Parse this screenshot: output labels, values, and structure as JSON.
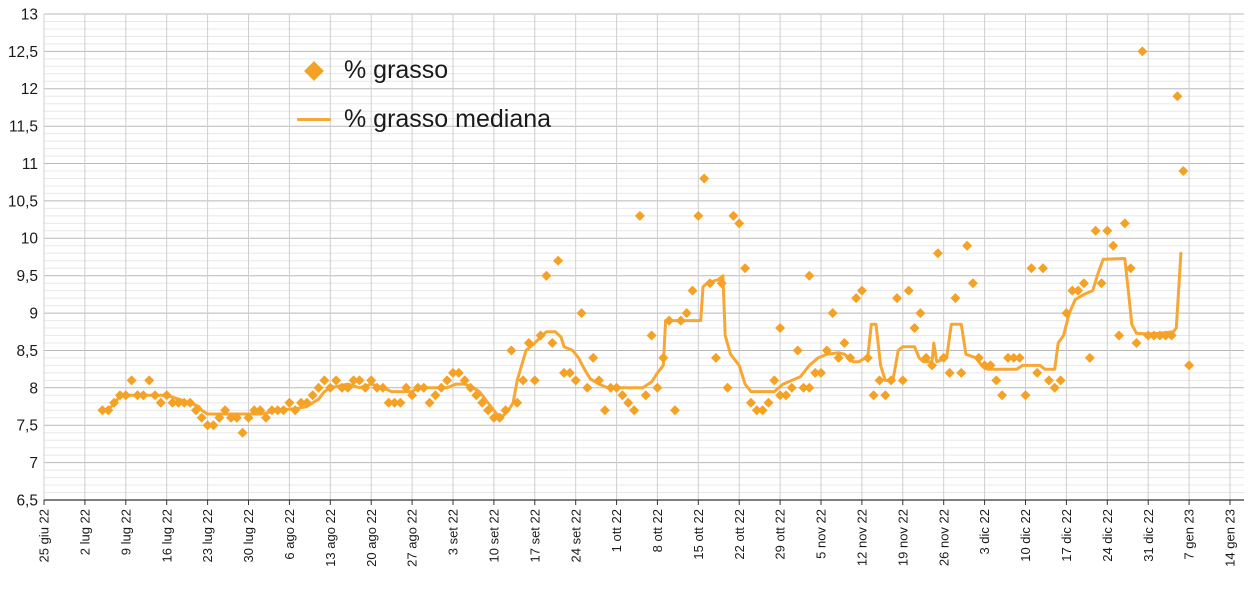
{
  "chart": {
    "legend": {
      "series1_label": "% grasso",
      "series2_label": "% grasso mediana"
    },
    "colors": {
      "accent": "#F5A125",
      "line": "#F7A733",
      "grid_major": "#b9b9b9",
      "grid_minor": "#e8e8e8",
      "grid_vertical": "#cfcfcf",
      "axis": "#333333",
      "text": "#1a1a1a"
    }
  },
  "chart_data": {
    "type": "scatter",
    "title": "",
    "xlabel": "",
    "ylabel": "",
    "grid": "major+minor",
    "legend_position": "inside-top-left",
    "x_axis": {
      "unit": "days since 25 giu 22",
      "range_days": [
        0,
        203
      ],
      "tick_interval_days": 7,
      "tick_labels": [
        "25 giu 22",
        "2 lug 22",
        "9 lug 22",
        "16 lug 22",
        "23 lug 22",
        "30 lug 22",
        "6 ago 22",
        "13 ago 22",
        "20 ago 22",
        "27 ago 22",
        "3 set 22",
        "10 set 22",
        "17 set 22",
        "24 set 22",
        "1 ott 22",
        "8 ott 22",
        "15 ott 22",
        "22 ott 22",
        "29 ott 22",
        "5 nov 22",
        "12 nov 22",
        "19 nov 22",
        "26 nov 22",
        "3 dic 22",
        "10 dic 22",
        "17 dic 22",
        "24 dic 22",
        "31 dic 22",
        "7 gen 23",
        "14 gen 23"
      ]
    },
    "y_axis": {
      "min": 6.5,
      "max": 13,
      "major_step": 0.5,
      "minor_step": 0.1,
      "tick_labels": [
        "6,5",
        "7",
        "7,5",
        "8",
        "8,5",
        "9",
        "9,5",
        "10",
        "10,5",
        "11",
        "11,5",
        "12",
        "12,5",
        "13"
      ]
    },
    "series": [
      {
        "name": "% grasso",
        "style": "diamond-scatter",
        "points": [
          [
            10,
            7.7
          ],
          [
            11,
            7.7
          ],
          [
            12,
            7.8
          ],
          [
            13,
            7.9
          ],
          [
            14,
            7.9
          ],
          [
            15,
            8.1
          ],
          [
            16,
            7.9
          ],
          [
            17,
            7.9
          ],
          [
            18,
            8.1
          ],
          [
            19,
            7.9
          ],
          [
            20,
            7.8
          ],
          [
            21,
            7.9
          ],
          [
            22,
            7.8
          ],
          [
            23,
            7.8
          ],
          [
            24,
            7.8
          ],
          [
            25,
            7.8
          ],
          [
            26,
            7.7
          ],
          [
            27,
            7.6
          ],
          [
            28,
            7.5
          ],
          [
            29,
            7.5
          ],
          [
            30,
            7.6
          ],
          [
            31,
            7.7
          ],
          [
            32,
            7.6
          ],
          [
            33,
            7.6
          ],
          [
            34,
            7.4
          ],
          [
            35,
            7.6
          ],
          [
            36,
            7.7
          ],
          [
            37,
            7.7
          ],
          [
            38,
            7.6
          ],
          [
            39,
            7.7
          ],
          [
            40,
            7.7
          ],
          [
            41,
            7.7
          ],
          [
            42,
            7.8
          ],
          [
            43,
            7.7
          ],
          [
            44,
            7.8
          ],
          [
            45,
            7.8
          ],
          [
            46,
            7.9
          ],
          [
            47,
            8.0
          ],
          [
            48,
            8.1
          ],
          [
            49,
            8.0
          ],
          [
            50,
            8.1
          ],
          [
            51,
            8.0
          ],
          [
            52,
            8.0
          ],
          [
            53,
            8.1
          ],
          [
            54,
            8.1
          ],
          [
            55,
            8.0
          ],
          [
            56,
            8.1
          ],
          [
            57,
            8.0
          ],
          [
            58,
            8.0
          ],
          [
            59,
            7.8
          ],
          [
            60,
            7.8
          ],
          [
            61,
            7.8
          ],
          [
            62,
            8.0
          ],
          [
            63,
            7.9
          ],
          [
            64,
            8.0
          ],
          [
            65,
            8.0
          ],
          [
            66,
            7.8
          ],
          [
            67,
            7.9
          ],
          [
            68,
            8.0
          ],
          [
            69,
            8.1
          ],
          [
            70,
            8.2
          ],
          [
            71,
            8.2
          ],
          [
            72,
            8.1
          ],
          [
            73,
            8.0
          ],
          [
            74,
            7.9
          ],
          [
            75,
            7.8
          ],
          [
            76,
            7.7
          ],
          [
            77,
            7.6
          ],
          [
            78,
            7.6
          ],
          [
            79,
            7.7
          ],
          [
            80,
            8.5
          ],
          [
            81,
            7.8
          ],
          [
            82,
            8.1
          ],
          [
            83,
            8.6
          ],
          [
            84,
            8.1
          ],
          [
            85,
            8.7
          ],
          [
            86,
            9.5
          ],
          [
            87,
            8.6
          ],
          [
            88,
            9.7
          ],
          [
            89,
            8.2
          ],
          [
            90,
            8.2
          ],
          [
            91,
            8.1
          ],
          [
            92,
            9.0
          ],
          [
            93,
            8.0
          ],
          [
            94,
            8.4
          ],
          [
            95,
            8.1
          ],
          [
            96,
            7.7
          ],
          [
            97,
            8.0
          ],
          [
            98,
            8.0
          ],
          [
            99,
            7.9
          ],
          [
            100,
            7.8
          ],
          [
            101,
            7.7
          ],
          [
            102,
            10.3
          ],
          [
            103,
            7.9
          ],
          [
            104,
            8.7
          ],
          [
            105,
            8.0
          ],
          [
            106,
            8.4
          ],
          [
            107,
            8.9
          ],
          [
            108,
            7.7
          ],
          [
            109,
            8.9
          ],
          [
            110,
            9.0
          ],
          [
            111,
            9.3
          ],
          [
            112,
            10.3
          ],
          [
            113,
            10.8
          ],
          [
            114,
            9.4
          ],
          [
            115,
            8.4
          ],
          [
            116,
            9.4
          ],
          [
            117,
            8.0
          ],
          [
            118,
            10.3
          ],
          [
            119,
            10.2
          ],
          [
            120,
            9.6
          ],
          [
            121,
            7.8
          ],
          [
            122,
            7.7
          ],
          [
            123,
            7.7
          ],
          [
            124,
            7.8
          ],
          [
            125,
            8.1
          ],
          [
            126,
            8.8
          ],
          [
            126,
            7.9
          ],
          [
            127,
            7.9
          ],
          [
            128,
            8.0
          ],
          [
            129,
            8.5
          ],
          [
            130,
            8.0
          ],
          [
            131,
            9.5
          ],
          [
            131,
            8.0
          ],
          [
            132,
            8.2
          ],
          [
            133,
            8.2
          ],
          [
            134,
            8.5
          ],
          [
            135,
            9.0
          ],
          [
            136,
            8.4
          ],
          [
            137,
            8.6
          ],
          [
            138,
            8.4
          ],
          [
            139,
            9.2
          ],
          [
            140,
            9.3
          ],
          [
            141,
            8.4
          ],
          [
            142,
            7.9
          ],
          [
            143,
            8.1
          ],
          [
            144,
            7.9
          ],
          [
            145,
            8.1
          ],
          [
            146,
            9.2
          ],
          [
            147,
            8.1
          ],
          [
            148,
            9.3
          ],
          [
            149,
            8.8
          ],
          [
            150,
            9.0
          ],
          [
            151,
            8.4
          ],
          [
            152,
            8.3
          ],
          [
            153,
            9.8
          ],
          [
            154,
            8.4
          ],
          [
            155,
            8.2
          ],
          [
            156,
            9.2
          ],
          [
            157,
            8.2
          ],
          [
            158,
            9.9
          ],
          [
            159,
            9.4
          ],
          [
            160,
            8.4
          ],
          [
            161,
            8.3
          ],
          [
            162,
            8.3
          ],
          [
            163,
            8.1
          ],
          [
            164,
            7.9
          ],
          [
            165,
            8.4
          ],
          [
            166,
            8.4
          ],
          [
            167,
            8.4
          ],
          [
            168,
            7.9
          ],
          [
            169,
            9.6
          ],
          [
            170,
            8.2
          ],
          [
            171,
            9.6
          ],
          [
            172,
            8.1
          ],
          [
            173,
            8.0
          ],
          [
            174,
            8.1
          ],
          [
            175,
            9.0
          ],
          [
            176,
            9.3
          ],
          [
            177,
            9.3
          ],
          [
            178,
            9.4
          ],
          [
            179,
            8.4
          ],
          [
            180,
            10.1
          ],
          [
            181,
            9.4
          ],
          [
            182,
            10.1
          ],
          [
            183,
            9.9
          ],
          [
            184,
            8.7
          ],
          [
            185,
            10.2
          ],
          [
            186,
            9.6
          ],
          [
            187,
            8.6
          ],
          [
            188,
            12.5
          ],
          [
            189,
            8.7
          ],
          [
            190,
            8.7
          ],
          [
            191,
            8.7
          ],
          [
            192,
            8.7
          ],
          [
            193,
            8.7
          ],
          [
            194,
            11.9
          ],
          [
            195,
            10.9
          ],
          [
            196,
            8.3
          ]
        ]
      },
      {
        "name": "% grasso mediana",
        "style": "line",
        "points": [
          [
            10,
            7.7
          ],
          [
            11,
            7.72
          ],
          [
            12,
            7.78
          ],
          [
            13,
            7.9
          ],
          [
            21,
            7.9
          ],
          [
            23,
            7.85
          ],
          [
            25,
            7.8
          ],
          [
            26.5,
            7.75
          ],
          [
            27,
            7.7
          ],
          [
            28,
            7.65
          ],
          [
            37,
            7.65
          ],
          [
            39,
            7.68
          ],
          [
            40,
            7.7
          ],
          [
            43,
            7.72
          ],
          [
            45,
            7.75
          ],
          [
            46,
            7.8
          ],
          [
            47,
            7.85
          ],
          [
            48,
            7.95
          ],
          [
            49,
            8.0
          ],
          [
            52,
            8.05
          ],
          [
            54,
            8.0
          ],
          [
            56,
            8.05
          ],
          [
            58,
            8.0
          ],
          [
            59.5,
            7.95
          ],
          [
            63,
            7.95
          ],
          [
            64,
            8.0
          ],
          [
            69,
            8.0
          ],
          [
            70.5,
            8.05
          ],
          [
            72,
            8.05
          ],
          [
            73.5,
            8.0
          ],
          [
            74.5,
            7.95
          ],
          [
            75.5,
            7.85
          ],
          [
            76.5,
            7.75
          ],
          [
            77.5,
            7.65
          ],
          [
            78.5,
            7.62
          ],
          [
            79.5,
            7.7
          ],
          [
            80.3,
            7.8
          ],
          [
            81,
            8.1
          ],
          [
            82.5,
            8.5
          ],
          [
            84,
            8.6
          ],
          [
            85,
            8.68
          ],
          [
            86,
            8.75
          ],
          [
            87.5,
            8.75
          ],
          [
            88.5,
            8.68
          ],
          [
            89,
            8.55
          ],
          [
            90.5,
            8.5
          ],
          [
            91.5,
            8.4
          ],
          [
            92.5,
            8.25
          ],
          [
            93.5,
            8.12
          ],
          [
            95,
            8.05
          ],
          [
            96.5,
            8.0
          ],
          [
            102.5,
            8.0
          ],
          [
            104,
            8.08
          ],
          [
            105,
            8.2
          ],
          [
            106,
            8.3
          ],
          [
            106.4,
            8.9
          ],
          [
            112.4,
            8.9
          ],
          [
            112.8,
            9.35
          ],
          [
            113.5,
            9.4
          ],
          [
            115.5,
            9.45
          ],
          [
            116.2,
            9.5
          ],
          [
            116.6,
            8.7
          ],
          [
            117.5,
            8.45
          ],
          [
            119,
            8.3
          ],
          [
            120,
            8.05
          ],
          [
            121,
            7.95
          ],
          [
            125,
            7.95
          ],
          [
            126.5,
            8.05
          ],
          [
            128,
            8.1
          ],
          [
            129.5,
            8.15
          ],
          [
            131,
            8.3
          ],
          [
            132.5,
            8.4
          ],
          [
            134,
            8.45
          ],
          [
            136,
            8.47
          ],
          [
            137,
            8.45
          ],
          [
            138.5,
            8.35
          ],
          [
            139.5,
            8.35
          ],
          [
            141,
            8.42
          ],
          [
            141.6,
            8.85
          ],
          [
            142.4,
            8.85
          ],
          [
            143.2,
            8.3
          ],
          [
            144,
            8.1
          ],
          [
            145.3,
            8.1
          ],
          [
            146.2,
            8.5
          ],
          [
            147,
            8.55
          ],
          [
            149,
            8.55
          ],
          [
            149.8,
            8.4
          ],
          [
            150.5,
            8.35
          ],
          [
            152,
            8.35
          ],
          [
            152.3,
            8.6
          ],
          [
            152.8,
            8.35
          ],
          [
            154.5,
            8.4
          ],
          [
            155.3,
            8.85
          ],
          [
            157,
            8.85
          ],
          [
            157.8,
            8.45
          ],
          [
            159.5,
            8.4
          ],
          [
            160.5,
            8.3
          ],
          [
            161.5,
            8.25
          ],
          [
            166.5,
            8.25
          ],
          [
            167.5,
            8.3
          ],
          [
            170.5,
            8.3
          ],
          [
            171.3,
            8.25
          ],
          [
            173,
            8.25
          ],
          [
            173.6,
            8.6
          ],
          [
            174.5,
            8.7
          ],
          [
            175.5,
            9.0
          ],
          [
            176.5,
            9.18
          ],
          [
            178,
            9.25
          ],
          [
            179.5,
            9.3
          ],
          [
            180.5,
            9.55
          ],
          [
            181.3,
            9.72
          ],
          [
            185,
            9.73
          ],
          [
            185.6,
            9.3
          ],
          [
            186.2,
            8.85
          ],
          [
            187,
            8.73
          ],
          [
            189,
            8.72
          ],
          [
            191,
            8.73
          ],
          [
            193.3,
            8.75
          ],
          [
            193.8,
            8.8
          ],
          [
            194.6,
            9.8
          ]
        ]
      }
    ]
  }
}
